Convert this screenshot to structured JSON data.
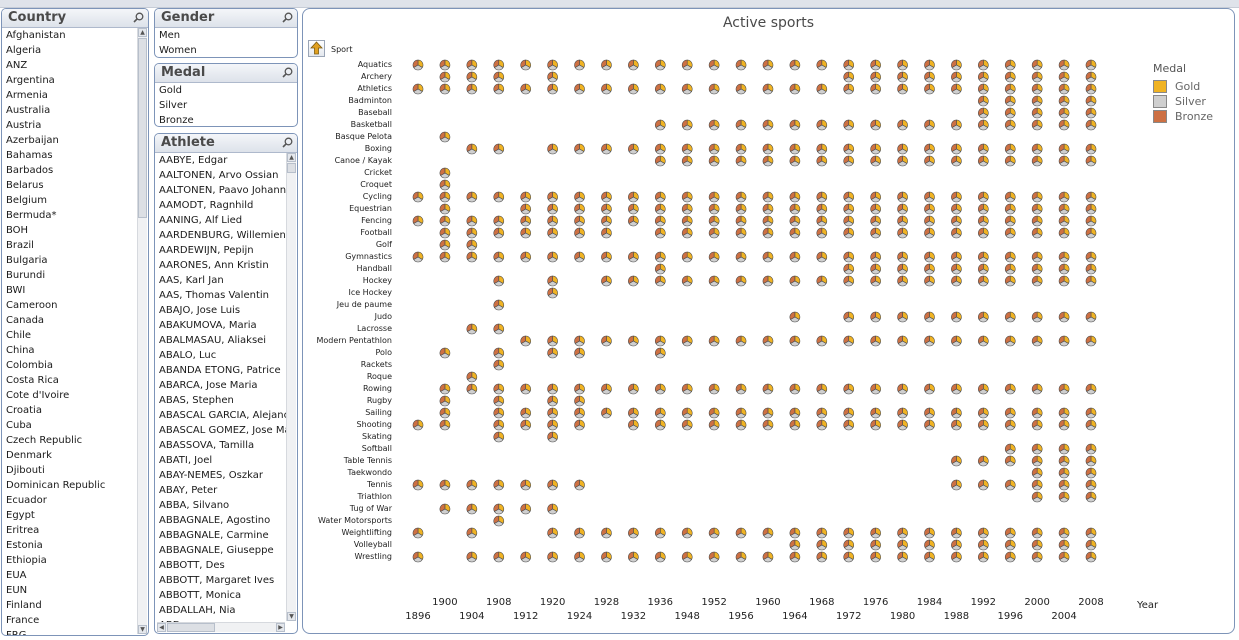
{
  "colors": {
    "gold": "#f0b323",
    "silver": "#cfcfcf",
    "bronze": "#cd7043",
    "frame": "#7d94b8"
  },
  "country": {
    "title": "Country",
    "items": [
      "Afghanistan",
      "Algeria",
      "ANZ",
      "Argentina",
      "Armenia",
      "Australia",
      "Austria",
      "Azerbaijan",
      "Bahamas",
      "Barbados",
      "Belarus",
      "Belgium",
      "Bermuda*",
      "BOH",
      "Brazil",
      "Bulgaria",
      "Burundi",
      "BWI",
      "Cameroon",
      "Canada",
      "Chile",
      "China",
      "Colombia",
      "Costa Rica",
      "Cote d'Ivoire",
      "Croatia",
      "Cuba",
      "Czech Republic",
      "Denmark",
      "Djibouti",
      "Dominican Republic",
      "Ecuador",
      "Egypt",
      "Eritrea",
      "Estonia",
      "Ethiopia",
      "EUA",
      "EUN",
      "Finland",
      "France",
      "FRG"
    ]
  },
  "gender": {
    "title": "Gender",
    "items": [
      "Men",
      "Women"
    ]
  },
  "medal": {
    "title": "Medal",
    "items": [
      "Gold",
      "Silver",
      "Bronze"
    ]
  },
  "athlete": {
    "title": "Athlete",
    "items": [
      "AABYE, Edgar",
      "AALTONEN, Arvo Ossian",
      "AALTONEN, Paavo Johann",
      "AAMODT, Ragnhild",
      "AANING, Alf Lied",
      "AARDENBURG, Willemien",
      "AARDEWIJN, Pepijn",
      "AARONES, Ann Kristin",
      "AAS, Karl Jan",
      "AAS, Thomas Valentin",
      "ABAJO, Jose Luis",
      "ABAKUMOVA, Maria",
      "ABALMASAU, Aliaksei",
      "ABALO, Luc",
      "ABANDA ETONG, Patrice",
      "ABARCA, Jose Maria",
      "ABAS, Stephen",
      "ABASCAL GARCIA, Alejanc",
      "ABASCAL GOMEZ, Jose Ma",
      "ABASSOVA, Tamilla",
      "ABATI, Joel",
      "ABAY-NEMES, Oszkar",
      "ABAY, Peter",
      "ABBA, Silvano",
      "ABBAGNALE, Agostino",
      "ABBAGNALE, Carmine",
      "ABBAGNALE, Giuseppe",
      "ABBOTT, Des",
      "ABBOTT, Margaret Ives",
      "ABBOTT, Monica",
      "ABDALLAH, Nia",
      "ABD..."
    ]
  },
  "chart": {
    "title": "Active sports",
    "dimension_label": "Sport",
    "x_axis_label": "Year",
    "legend": {
      "title": "Medal",
      "items": [
        {
          "label": "Gold",
          "key": "gold"
        },
        {
          "label": "Silver",
          "key": "silver"
        },
        {
          "label": "Bronze",
          "key": "bronze"
        }
      ]
    }
  },
  "chart_data": {
    "type": "scatter",
    "title": "Active sports",
    "xlabel": "Year",
    "ylabel": "Sport",
    "legend_position": "right",
    "years": [
      1896,
      1900,
      1904,
      1908,
      1912,
      1920,
      1924,
      1928,
      1932,
      1936,
      1948,
      1952,
      1956,
      1960,
      1964,
      1968,
      1972,
      1976,
      1980,
      1984,
      1988,
      1992,
      1996,
      2000,
      2004,
      2008
    ],
    "sports": [
      {
        "name": "Aquatics",
        "years": [
          1896,
          1900,
          1904,
          1908,
          1912,
          1920,
          1924,
          1928,
          1932,
          1936,
          1948,
          1952,
          1956,
          1960,
          1964,
          1968,
          1972,
          1976,
          1980,
          1984,
          1988,
          1992,
          1996,
          2000,
          2004,
          2008
        ]
      },
      {
        "name": "Archery",
        "years": [
          1900,
          1904,
          1908,
          1920,
          1972,
          1976,
          1980,
          1984,
          1988,
          1992,
          1996,
          2000,
          2004,
          2008
        ]
      },
      {
        "name": "Athletics",
        "years": [
          1896,
          1900,
          1904,
          1908,
          1912,
          1920,
          1924,
          1928,
          1932,
          1936,
          1948,
          1952,
          1956,
          1960,
          1964,
          1968,
          1972,
          1976,
          1980,
          1984,
          1988,
          1992,
          1996,
          2000,
          2004,
          2008
        ]
      },
      {
        "name": "Badminton",
        "years": [
          1992,
          1996,
          2000,
          2004,
          2008
        ]
      },
      {
        "name": "Baseball",
        "years": [
          1992,
          1996,
          2000,
          2004,
          2008
        ]
      },
      {
        "name": "Basketball",
        "years": [
          1936,
          1948,
          1952,
          1956,
          1960,
          1964,
          1968,
          1972,
          1976,
          1980,
          1984,
          1988,
          1992,
          1996,
          2000,
          2004,
          2008
        ]
      },
      {
        "name": "Basque Pelota",
        "years": [
          1900
        ]
      },
      {
        "name": "Boxing",
        "years": [
          1904,
          1908,
          1920,
          1924,
          1928,
          1932,
          1936,
          1948,
          1952,
          1956,
          1960,
          1964,
          1968,
          1972,
          1976,
          1980,
          1984,
          1988,
          1992,
          1996,
          2000,
          2004,
          2008
        ]
      },
      {
        "name": "Canoe / Kayak",
        "years": [
          1936,
          1948,
          1952,
          1956,
          1960,
          1964,
          1968,
          1972,
          1976,
          1980,
          1984,
          1988,
          1992,
          1996,
          2000,
          2004,
          2008
        ]
      },
      {
        "name": "Cricket",
        "years": [
          1900
        ]
      },
      {
        "name": "Croquet",
        "years": [
          1900
        ]
      },
      {
        "name": "Cycling",
        "years": [
          1896,
          1900,
          1904,
          1908,
          1912,
          1920,
          1924,
          1928,
          1932,
          1936,
          1948,
          1952,
          1956,
          1960,
          1964,
          1968,
          1972,
          1976,
          1980,
          1984,
          1988,
          1992,
          1996,
          2000,
          2004,
          2008
        ]
      },
      {
        "name": "Equestrian",
        "years": [
          1900,
          1912,
          1920,
          1924,
          1928,
          1932,
          1936,
          1948,
          1952,
          1956,
          1960,
          1964,
          1968,
          1972,
          1976,
          1980,
          1984,
          1988,
          1992,
          1996,
          2000,
          2004,
          2008
        ]
      },
      {
        "name": "Fencing",
        "years": [
          1896,
          1900,
          1904,
          1908,
          1912,
          1920,
          1924,
          1928,
          1932,
          1936,
          1948,
          1952,
          1956,
          1960,
          1964,
          1968,
          1972,
          1976,
          1980,
          1984,
          1988,
          1992,
          1996,
          2000,
          2004,
          2008
        ]
      },
      {
        "name": "Football",
        "years": [
          1900,
          1904,
          1908,
          1912,
          1920,
          1924,
          1928,
          1936,
          1948,
          1952,
          1956,
          1960,
          1964,
          1968,
          1972,
          1976,
          1980,
          1984,
          1988,
          1992,
          1996,
          2000,
          2004,
          2008
        ]
      },
      {
        "name": "Golf",
        "years": [
          1900,
          1904
        ]
      },
      {
        "name": "Gymnastics",
        "years": [
          1896,
          1900,
          1904,
          1908,
          1912,
          1920,
          1924,
          1928,
          1932,
          1936,
          1948,
          1952,
          1956,
          1960,
          1964,
          1968,
          1972,
          1976,
          1980,
          1984,
          1988,
          1992,
          1996,
          2000,
          2004,
          2008
        ]
      },
      {
        "name": "Handball",
        "years": [
          1936,
          1972,
          1976,
          1980,
          1984,
          1988,
          1992,
          1996,
          2000,
          2004,
          2008
        ]
      },
      {
        "name": "Hockey",
        "years": [
          1908,
          1920,
          1928,
          1932,
          1936,
          1948,
          1952,
          1956,
          1960,
          1964,
          1968,
          1972,
          1976,
          1980,
          1984,
          1988,
          1992,
          1996,
          2000,
          2004,
          2008
        ]
      },
      {
        "name": "Ice Hockey",
        "years": [
          1920
        ]
      },
      {
        "name": "Jeu de paume",
        "years": [
          1908
        ]
      },
      {
        "name": "Judo",
        "years": [
          1964,
          1972,
          1976,
          1980,
          1984,
          1988,
          1992,
          1996,
          2000,
          2004,
          2008
        ]
      },
      {
        "name": "Lacrosse",
        "years": [
          1904,
          1908
        ]
      },
      {
        "name": "Modern Pentathlon",
        "years": [
          1912,
          1920,
          1924,
          1928,
          1932,
          1936,
          1948,
          1952,
          1956,
          1960,
          1964,
          1968,
          1972,
          1976,
          1980,
          1984,
          1988,
          1992,
          1996,
          2000,
          2004,
          2008
        ]
      },
      {
        "name": "Polo",
        "years": [
          1900,
          1908,
          1920,
          1924,
          1936
        ]
      },
      {
        "name": "Rackets",
        "years": [
          1908
        ]
      },
      {
        "name": "Roque",
        "years": [
          1904
        ]
      },
      {
        "name": "Rowing",
        "years": [
          1900,
          1904,
          1908,
          1912,
          1920,
          1924,
          1928,
          1932,
          1936,
          1948,
          1952,
          1956,
          1960,
          1964,
          1968,
          1972,
          1976,
          1980,
          1984,
          1988,
          1992,
          1996,
          2000,
          2004,
          2008
        ]
      },
      {
        "name": "Rugby",
        "years": [
          1900,
          1908,
          1920,
          1924
        ]
      },
      {
        "name": "Sailing",
        "years": [
          1900,
          1908,
          1912,
          1920,
          1924,
          1928,
          1932,
          1936,
          1948,
          1952,
          1956,
          1960,
          1964,
          1968,
          1972,
          1976,
          1980,
          1984,
          1988,
          1992,
          1996,
          2000,
          2004,
          2008
        ]
      },
      {
        "name": "Shooting",
        "years": [
          1896,
          1900,
          1908,
          1912,
          1920,
          1924,
          1932,
          1936,
          1948,
          1952,
          1956,
          1960,
          1964,
          1968,
          1972,
          1976,
          1980,
          1984,
          1988,
          1992,
          1996,
          2000,
          2004,
          2008
        ]
      },
      {
        "name": "Skating",
        "years": [
          1908,
          1920
        ]
      },
      {
        "name": "Softball",
        "years": [
          1996,
          2000,
          2004,
          2008
        ]
      },
      {
        "name": "Table Tennis",
        "years": [
          1988,
          1992,
          1996,
          2000,
          2004,
          2008
        ]
      },
      {
        "name": "Taekwondo",
        "years": [
          2000,
          2004,
          2008
        ]
      },
      {
        "name": "Tennis",
        "years": [
          1896,
          1900,
          1904,
          1908,
          1912,
          1920,
          1924,
          1988,
          1992,
          1996,
          2000,
          2004,
          2008
        ]
      },
      {
        "name": "Triathlon",
        "years": [
          2000,
          2004,
          2008
        ]
      },
      {
        "name": "Tug of War",
        "years": [
          1900,
          1904,
          1908,
          1912,
          1920
        ]
      },
      {
        "name": "Water Motorsports",
        "years": [
          1908
        ]
      },
      {
        "name": "Weightlifting",
        "years": [
          1896,
          1904,
          1920,
          1924,
          1928,
          1932,
          1936,
          1948,
          1952,
          1956,
          1960,
          1964,
          1968,
          1972,
          1976,
          1980,
          1984,
          1988,
          1992,
          1996,
          2000,
          2004,
          2008
        ]
      },
      {
        "name": "Volleyball",
        "years": [
          1964,
          1968,
          1972,
          1976,
          1980,
          1984,
          1988,
          1992,
          1996,
          2000,
          2004,
          2008
        ]
      },
      {
        "name": "Wrestling",
        "years": [
          1896,
          1904,
          1908,
          1912,
          1920,
          1924,
          1928,
          1932,
          1936,
          1948,
          1952,
          1956,
          1960,
          1964,
          1968,
          1972,
          1976,
          1980,
          1984,
          1988,
          1992,
          1996,
          2000,
          2004,
          2008
        ]
      }
    ]
  }
}
